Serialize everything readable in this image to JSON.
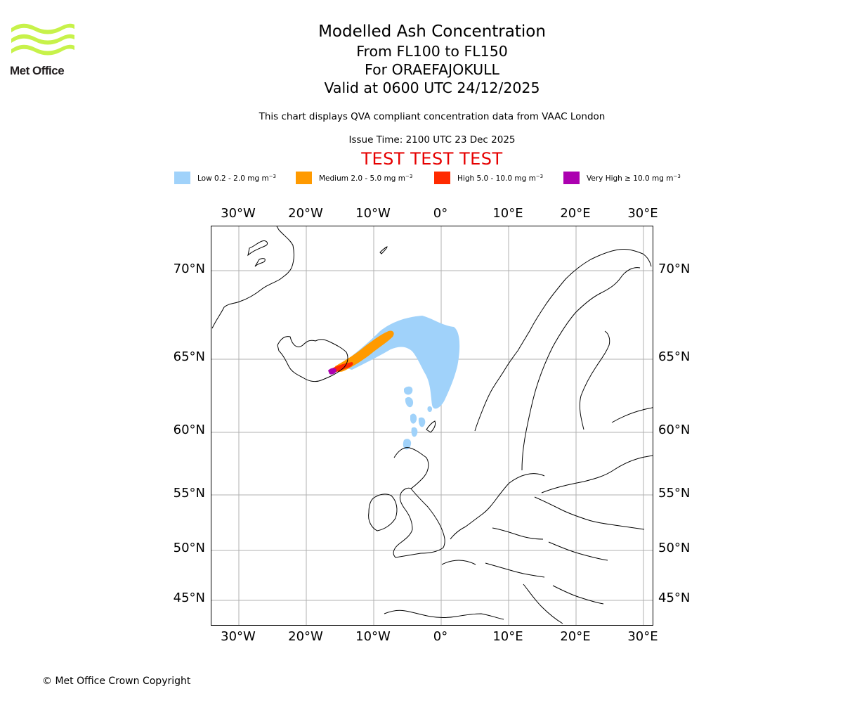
{
  "header": {
    "logo_text": "Met Office",
    "title": "Modelled Ash Concentration",
    "levels": "From FL100 to FL150",
    "volcano": "For ORAEFAJOKULL",
    "valid": "Valid at 0600 UTC 24/12/2025",
    "description": "This chart displays QVA compliant concentration data from VAAC London",
    "issue_time": "Issue Time: 2100 UTC 23 Dec 2025",
    "test_banner": "TEST TEST TEST"
  },
  "legend": [
    {
      "label": "Low 0.2 - 2.0 mg m",
      "sup": "−3",
      "color": "#a0d2fa"
    },
    {
      "label": "Medium 2.0 - 5.0 mg m",
      "sup": "−3",
      "color": "#ff9a00"
    },
    {
      "label": "High 5.0 - 10.0 mg m",
      "sup": "−3",
      "color": "#ff2a00"
    },
    {
      "label": "Very High  ≥  10.0 mg m",
      "sup": "−3",
      "color": "#ac00b0"
    }
  ],
  "map": {
    "lon_ticks": [
      "30°W",
      "20°W",
      "10°W",
      "0°",
      "10°E",
      "20°E",
      "30°E"
    ],
    "lat_ticks": [
      "70°N",
      "65°N",
      "60°N",
      "55°N",
      "50°N",
      "45°N"
    ],
    "gridline_color": "#b0b0b0",
    "coastline_color": "#000000"
  },
  "footer": {
    "copyright": "© Met Office Crown Copyright"
  }
}
